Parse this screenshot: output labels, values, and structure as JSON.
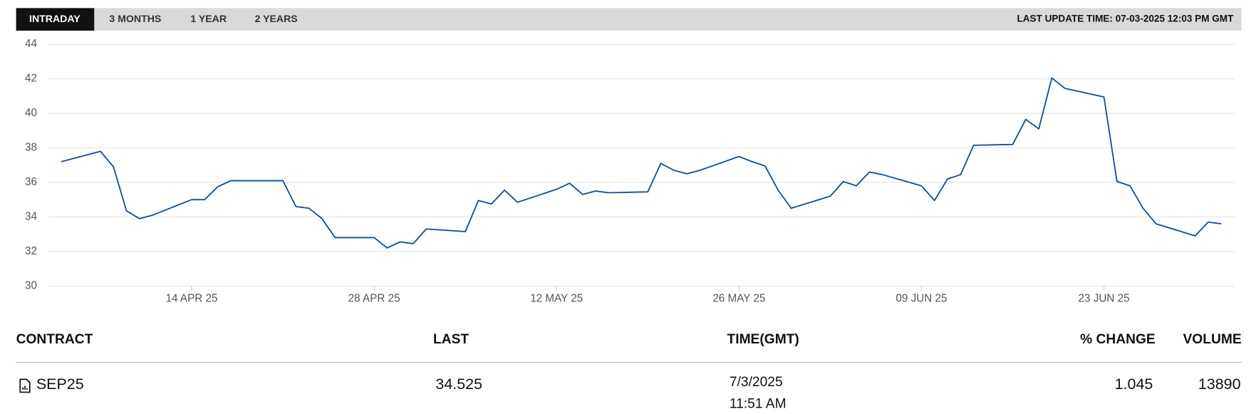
{
  "tabs": [
    "INTRADAY",
    "3 MONTHS",
    "1 YEAR",
    "2 YEARS"
  ],
  "last_update": "LAST UPDATE TIME: 07-03-2025 12:03 PM GMT",
  "chart_data": {
    "type": "line",
    "x": [
      "2025-04-04",
      "2025-04-07",
      "2025-04-08",
      "2025-04-09",
      "2025-04-10",
      "2025-04-11",
      "2025-04-14",
      "2025-04-15",
      "2025-04-16",
      "2025-04-17",
      "2025-04-21",
      "2025-04-22",
      "2025-04-23",
      "2025-04-24",
      "2025-04-25",
      "2025-04-28",
      "2025-04-29",
      "2025-04-30",
      "2025-05-01",
      "2025-05-02",
      "2025-05-05",
      "2025-05-06",
      "2025-05-07",
      "2025-05-08",
      "2025-05-09",
      "2025-05-12",
      "2025-05-13",
      "2025-05-14",
      "2025-05-15",
      "2025-05-16",
      "2025-05-19",
      "2025-05-20",
      "2025-05-21",
      "2025-05-22",
      "2025-05-23",
      "2025-05-26",
      "2025-05-27",
      "2025-05-28",
      "2025-05-29",
      "2025-05-30",
      "2025-06-02",
      "2025-06-03",
      "2025-06-04",
      "2025-06-05",
      "2025-06-06",
      "2025-06-09",
      "2025-06-10",
      "2025-06-11",
      "2025-06-12",
      "2025-06-13",
      "2025-06-16",
      "2025-06-17",
      "2025-06-18",
      "2025-06-19",
      "2025-06-20",
      "2025-06-23",
      "2025-06-24",
      "2025-06-25",
      "2025-06-26",
      "2025-06-27",
      "2025-06-30",
      "2025-07-01",
      "2025-07-02"
    ],
    "series": [
      {
        "color": "#0b4ea2",
        "values": [
          37.2,
          37.8,
          36.9,
          34.35,
          33.9,
          34.1,
          35.0,
          35.0,
          35.75,
          36.1,
          36.1,
          34.6,
          34.5,
          33.9,
          32.8,
          32.8,
          32.2,
          32.55,
          32.45,
          33.3,
          33.15,
          34.95,
          34.75,
          35.55,
          34.85,
          35.6,
          35.95,
          35.3,
          35.5,
          35.4,
          35.45,
          37.1,
          36.7,
          36.5,
          36.7,
          37.5,
          37.2,
          36.95,
          35.55,
          34.5,
          35.2,
          36.05,
          35.8,
          36.6,
          36.45,
          35.8,
          34.95,
          36.2,
          36.45,
          38.15,
          38.2,
          39.65,
          39.1,
          42.05,
          41.45,
          40.95,
          36.05,
          35.8,
          34.5,
          33.6,
          32.9,
          33.7,
          33.6
        ]
      }
    ],
    "xlim": [
      "2025-04-03",
      "2025-07-03"
    ],
    "xticks": [
      {
        "value": "2025-04-14",
        "label": "14 APR 25"
      },
      {
        "value": "2025-04-28",
        "label": "28 APR 25"
      },
      {
        "value": "2025-05-12",
        "label": "12 MAY 25"
      },
      {
        "value": "2025-05-26",
        "label": "26 MAY 25"
      },
      {
        "value": "2025-06-09",
        "label": "09 JUN 25"
      },
      {
        "value": "2025-06-23",
        "label": "23 JUN 25"
      }
    ],
    "ylim": [
      30,
      44
    ],
    "yticks": [
      30,
      32,
      34,
      36,
      38,
      40,
      42,
      44
    ],
    "grid": true
  },
  "table": {
    "headers": [
      "CONTRACT",
      "LAST",
      "TIME(GMT)",
      "% CHANGE",
      "VOLUME"
    ],
    "rows": [
      {
        "contract": "SEP25",
        "last": "34.525",
        "date": "7/3/2025",
        "time": "11:51 AM",
        "change": "1.045",
        "volume": "13890"
      }
    ]
  }
}
